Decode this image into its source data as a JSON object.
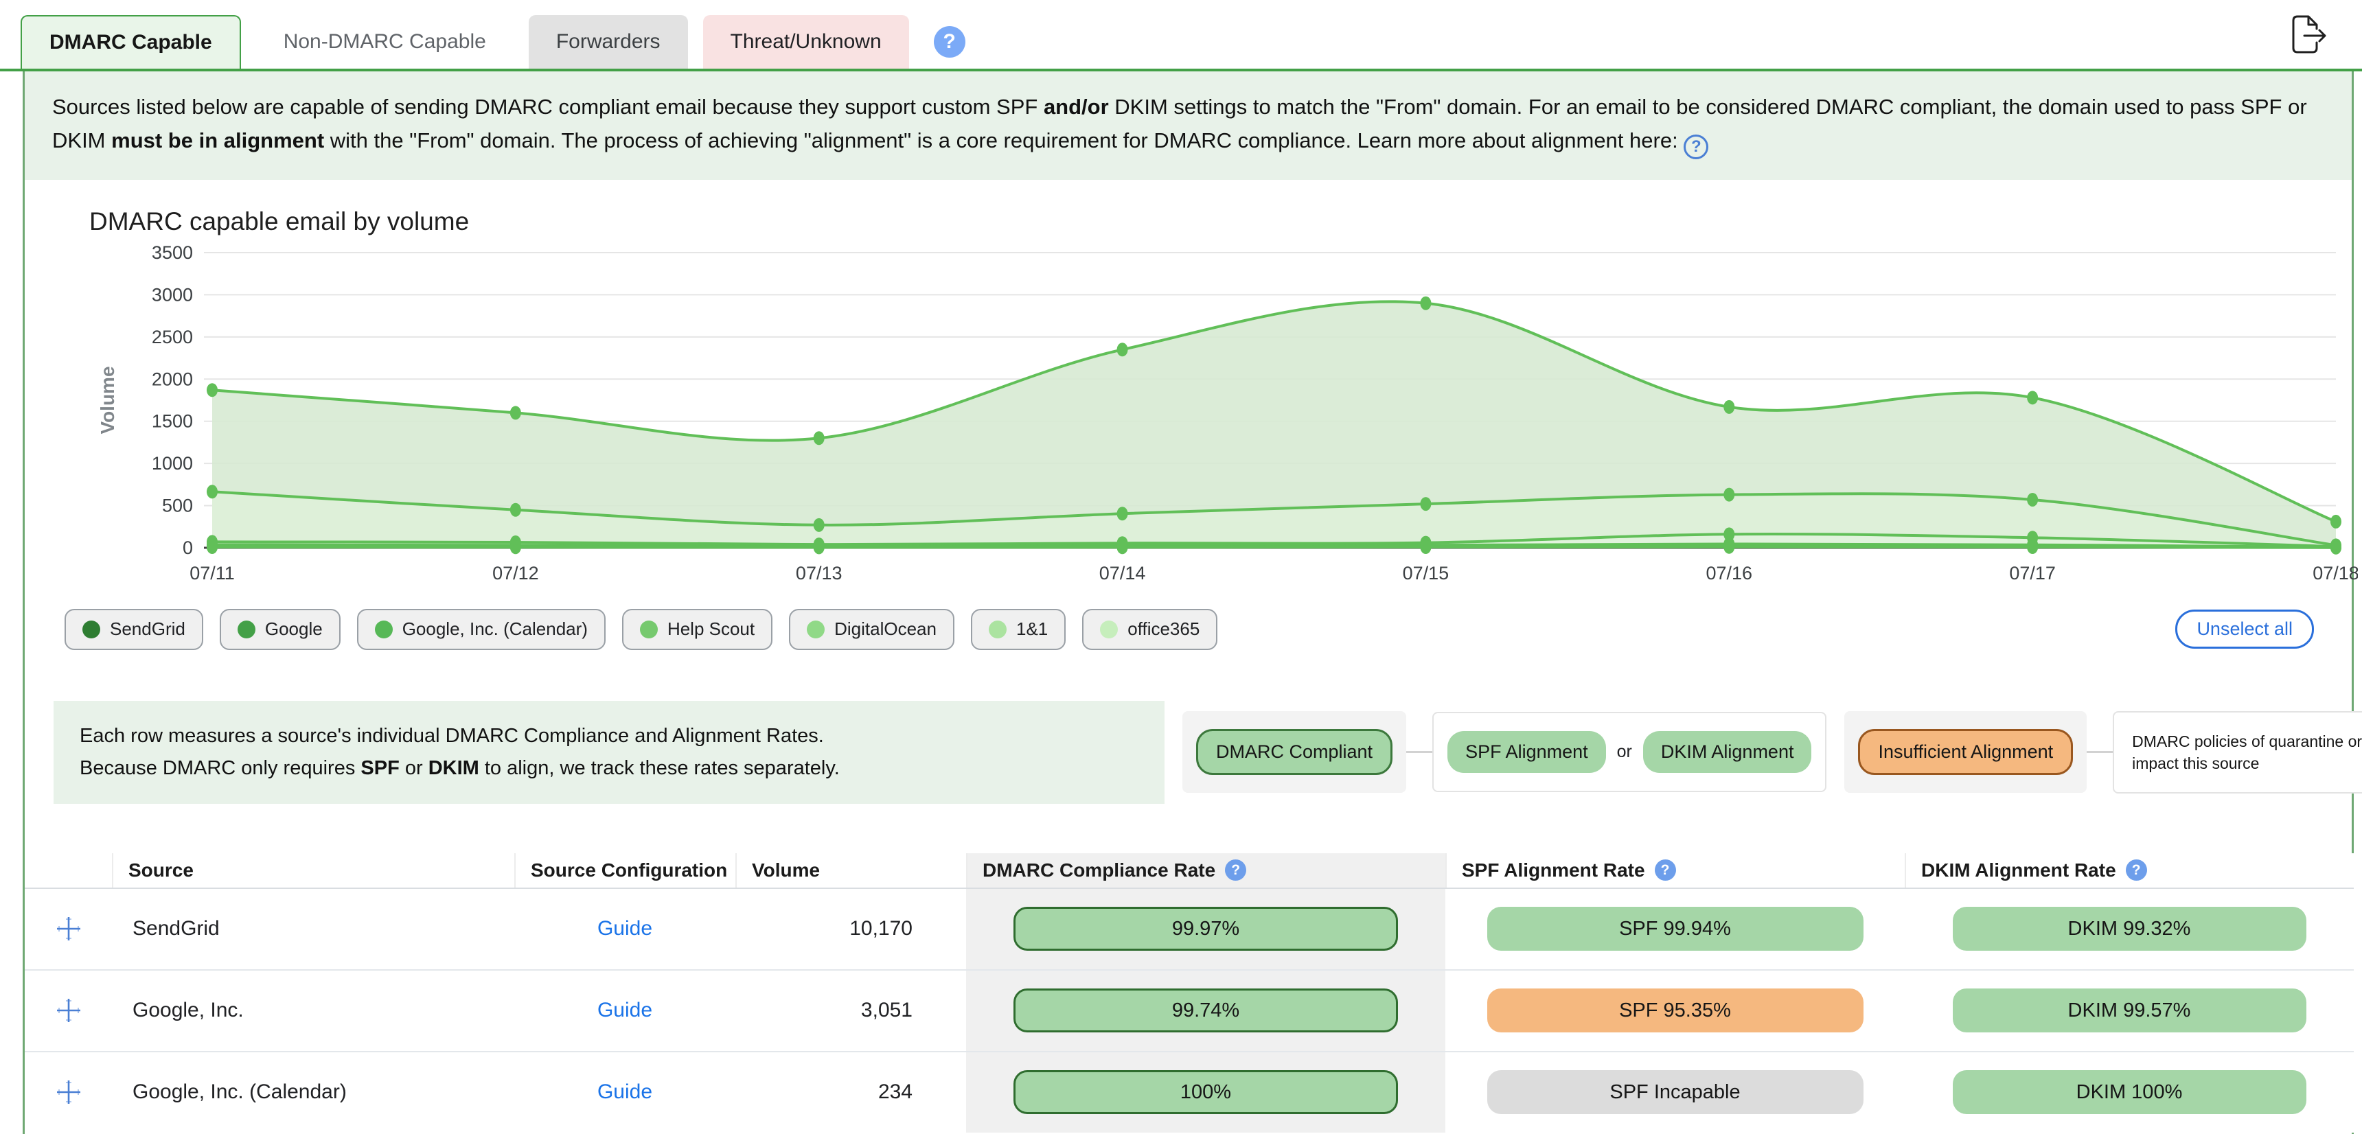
{
  "tabs": [
    {
      "label": "DMARC Capable",
      "state": "active"
    },
    {
      "label": "Non-DMARC Capable",
      "state": "plain"
    },
    {
      "label": "Forwarders",
      "state": "gray"
    },
    {
      "label": "Threat/Unknown",
      "state": "pink"
    }
  ],
  "header_icons": {
    "help": "?",
    "export": "export-file-icon"
  },
  "banner": {
    "segments": [
      {
        "t": "Sources listed below are capable of sending DMARC compliant email because they support custom SPF ",
        "b": false
      },
      {
        "t": "and/or",
        "b": true
      },
      {
        "t": " DKIM settings to match the \"From\" domain. For an email to be considered DMARC compliant, the domain used to pass SPF or DKIM ",
        "b": false
      },
      {
        "t": "must be in alignment",
        "b": true
      },
      {
        "t": " with the \"From\" domain. The process of achieving \"alignment\" is a core requirement for DMARC compliance. Learn more about alignment here: ",
        "b": false
      }
    ],
    "end_icon": "?"
  },
  "chart_data": {
    "type": "area",
    "title": "DMARC capable email by volume",
    "ylabel": "Volume",
    "x": [
      "07/11",
      "07/12",
      "07/13",
      "07/14",
      "07/15",
      "07/16",
      "07/17",
      "07/18"
    ],
    "ylim": [
      0,
      3500
    ],
    "ytick_step": 500,
    "grid": true,
    "legend_position": "bottom-chips",
    "line_color": "#61bf58",
    "grid_color": "#e5e5e5",
    "axis_color": "#424242",
    "tick_color": "#3c4043",
    "series": [
      {
        "name": "SendGrid",
        "legend_color": "#2e7d32",
        "fill": "#d6e9d2",
        "values": [
          1870,
          1600,
          1300,
          2350,
          2900,
          1670,
          1780,
          310
        ]
      },
      {
        "name": "Google",
        "legend_color": "#43a047",
        "fill": "#def0da",
        "values": [
          665,
          450,
          270,
          405,
          520,
          630,
          570,
          30
        ]
      },
      {
        "name": "Google, Inc. (Calendar)",
        "legend_color": "#57b857",
        "fill": "#e1f2dd",
        "values": [
          70,
          65,
          40,
          55,
          60,
          160,
          120,
          15
        ]
      },
      {
        "name": "Help Scout",
        "legend_color": "#76c96e",
        "fill": "#e5f4e1",
        "values": [
          35,
          30,
          20,
          25,
          30,
          45,
          35,
          8
        ]
      },
      {
        "name": "DigitalOcean",
        "legend_color": "#90d987",
        "fill": "#e9f6e5",
        "values": [
          20,
          18,
          12,
          15,
          18,
          25,
          20,
          5
        ]
      },
      {
        "name": "1&1",
        "legend_color": "#abe3a0",
        "fill": "#edf8e9",
        "values": [
          12,
          10,
          8,
          10,
          12,
          15,
          12,
          3
        ]
      },
      {
        "name": "office365",
        "legend_color": "#c6eebc",
        "fill": "#f1faee",
        "values": [
          8,
          6,
          5,
          6,
          8,
          10,
          8,
          2
        ]
      }
    ]
  },
  "legend_controls": {
    "unselect_all": "Unselect all"
  },
  "note_box": {
    "line1": [
      {
        "t": "Each row measures a source's individual DMARC Compliance and Alignment Rates.",
        "b": false
      }
    ],
    "line2": [
      {
        "t": "Because DMARC only requires ",
        "b": false
      },
      {
        "t": "SPF",
        "b": true
      },
      {
        "t": " or ",
        "b": false
      },
      {
        "t": "DKIM",
        "b": true
      },
      {
        "t": " to align, we track these rates separately.",
        "b": false
      }
    ]
  },
  "rate_legend": {
    "compliant": "DMARC Compliant",
    "spf": "SPF Alignment",
    "or": "or",
    "dkim": "DKIM Alignment",
    "insufficient": "Insufficient Alignment",
    "policy_note": "DMARC policies of quarantine or reject will impact this source"
  },
  "table": {
    "columns": [
      {
        "label": "",
        "help": false,
        "shaded": false
      },
      {
        "label": "Source",
        "help": false,
        "shaded": false
      },
      {
        "label": "Source Configuration",
        "help": false,
        "shaded": false
      },
      {
        "label": "Volume",
        "help": false,
        "shaded": false
      },
      {
        "label": "DMARC Compliance Rate",
        "help": true,
        "shaded": true
      },
      {
        "label": "SPF Alignment Rate",
        "help": true,
        "shaded": false
      },
      {
        "label": "DKIM Alignment Rate",
        "help": true,
        "shaded": false
      }
    ],
    "rows": [
      {
        "source": "SendGrid",
        "config": "Guide",
        "volume": "10,170",
        "compliance": "99.97%",
        "spf": {
          "text": "SPF 99.94%",
          "style": "green"
        },
        "dkim": {
          "text": "DKIM 99.32%",
          "style": "green"
        }
      },
      {
        "source": "Google, Inc.",
        "config": "Guide",
        "volume": "3,051",
        "compliance": "99.74%",
        "spf": {
          "text": "SPF 95.35%",
          "style": "orange"
        },
        "dkim": {
          "text": "DKIM 99.57%",
          "style": "green"
        }
      },
      {
        "source": "Google, Inc. (Calendar)",
        "config": "Guide",
        "volume": "234",
        "compliance": "100%",
        "spf": {
          "text": "SPF Incapable",
          "style": "gray"
        },
        "dkim": {
          "text": "DKIM 100%",
          "style": "green"
        }
      }
    ]
  },
  "colors": {
    "tab_underline": "#43a047",
    "panel_border": "#6fa873",
    "banner_bg": "#e8f2e9",
    "badge_green": "#a5d6a7",
    "badge_orange": "#f5b87f",
    "badge_gray": "#dcdcdc",
    "link_blue": "#1a73e8",
    "help_blue": "#6d9eeb"
  }
}
